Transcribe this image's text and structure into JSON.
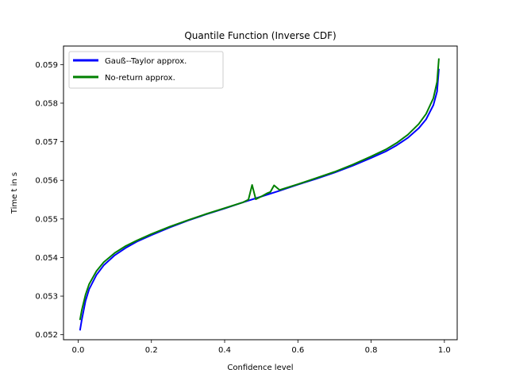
{
  "chart_data": {
    "type": "line",
    "title": "Quantile Function (Inverse CDF)",
    "xlabel": "Confidence level",
    "ylabel": "Time t in s",
    "xlim": [
      -0.04,
      1.035
    ],
    "ylim": [
      0.05187,
      0.05948
    ],
    "xticks": [
      0.0,
      0.2,
      0.4,
      0.6,
      0.8,
      1.0
    ],
    "xtick_labels": [
      "0.0",
      "0.2",
      "0.4",
      "0.6",
      "0.8",
      "1.0"
    ],
    "yticks": [
      0.052,
      0.053,
      0.054,
      0.055,
      0.056,
      0.057,
      0.058,
      0.059
    ],
    "ytick_labels": [
      "0.052",
      "0.053",
      "0.054",
      "0.055",
      "0.056",
      "0.057",
      "0.058",
      "0.059"
    ],
    "grid": false,
    "legend_position": "top-left",
    "series": [
      {
        "name": "Gauß--Taylor approx.",
        "color": "#0000ff",
        "x": [
          0.005,
          0.01,
          0.02,
          0.03,
          0.05,
          0.07,
          0.1,
          0.13,
          0.16,
          0.2,
          0.25,
          0.3,
          0.35,
          0.4,
          0.45,
          0.5,
          0.55,
          0.6,
          0.65,
          0.7,
          0.75,
          0.8,
          0.84,
          0.87,
          0.9,
          0.93,
          0.95,
          0.97,
          0.98,
          0.985
        ],
        "y": [
          0.05211,
          0.05239,
          0.05287,
          0.05318,
          0.05355,
          0.0538,
          0.05406,
          0.05425,
          0.05441,
          0.05458,
          0.05478,
          0.05496,
          0.05512,
          0.05527,
          0.05543,
          0.05558,
          0.05573,
          0.05589,
          0.05604,
          0.0562,
          0.05638,
          0.05658,
          0.05675,
          0.05691,
          0.0571,
          0.05735,
          0.05758,
          0.05795,
          0.0583,
          0.05889
        ]
      },
      {
        "name": "No-return approx.",
        "color": "#008000",
        "x": [
          0.005,
          0.01,
          0.02,
          0.03,
          0.05,
          0.07,
          0.1,
          0.13,
          0.16,
          0.2,
          0.25,
          0.3,
          0.35,
          0.4,
          0.45,
          0.465,
          0.475,
          0.485,
          0.5,
          0.515,
          0.525,
          0.535,
          0.55,
          0.6,
          0.65,
          0.7,
          0.75,
          0.8,
          0.84,
          0.87,
          0.9,
          0.93,
          0.95,
          0.97,
          0.98,
          0.985
        ],
        "y": [
          0.05238,
          0.05264,
          0.05303,
          0.05331,
          0.05365,
          0.05388,
          0.05412,
          0.0543,
          0.05444,
          0.05461,
          0.0548,
          0.05497,
          0.05513,
          0.05528,
          0.05543,
          0.0555,
          0.05588,
          0.05551,
          0.05558,
          0.05566,
          0.0557,
          0.05587,
          0.05575,
          0.0559,
          0.05606,
          0.05622,
          0.05641,
          0.05662,
          0.0568,
          0.05697,
          0.05718,
          0.05746,
          0.05772,
          0.05813,
          0.05855,
          0.05916
        ]
      }
    ]
  }
}
